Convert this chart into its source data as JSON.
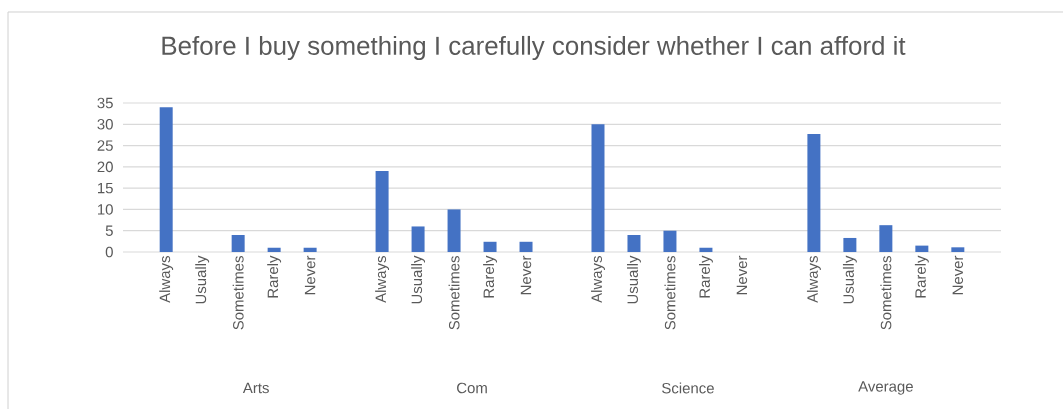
{
  "chart_data": {
    "type": "bar",
    "title": "Before I buy something I carefully consider whether I can afford it",
    "categories": [
      "Always",
      "Usually",
      "Sometimes",
      "Rarely",
      "Never",
      null,
      "Always",
      "Usually",
      "Sometimes",
      "Rarely",
      "Never",
      null,
      "Always",
      "Usually",
      "Sometimes",
      "Rarely",
      "Never",
      null,
      "Always",
      "Usually",
      "Sometimes",
      "Rarely",
      "Never"
    ],
    "values": [
      34,
      0,
      4,
      1,
      1,
      null,
      19,
      6,
      10,
      2.4,
      2.4,
      null,
      30,
      4,
      5,
      1,
      0,
      null,
      27.7,
      3.3,
      6.3,
      1.5,
      1.1
    ],
    "color": "#4472c4",
    "ylim": [
      0,
      35
    ],
    "yticks": [
      0,
      5,
      10,
      15,
      20,
      25,
      30,
      35
    ],
    "grid": "y",
    "annotations": [
      "Arts",
      "Com",
      "Science",
      "Average"
    ]
  }
}
